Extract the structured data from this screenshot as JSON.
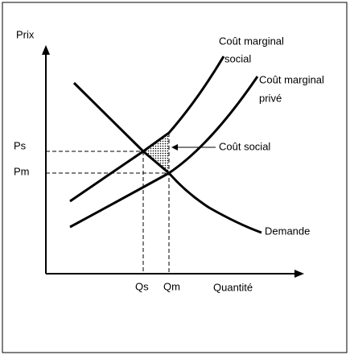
{
  "axes": {
    "y_label": "Prix",
    "x_label": "Quantité"
  },
  "prices": {
    "social": "Ps",
    "market": "Pm"
  },
  "quantities": {
    "social": "Qs",
    "market": "Qm"
  },
  "curves": {
    "social_cost": [
      "Coût marginal",
      "social"
    ],
    "private_cost": [
      "Coût marginal",
      "privé"
    ],
    "demand": "Demande"
  },
  "annotation": "Coût social"
}
